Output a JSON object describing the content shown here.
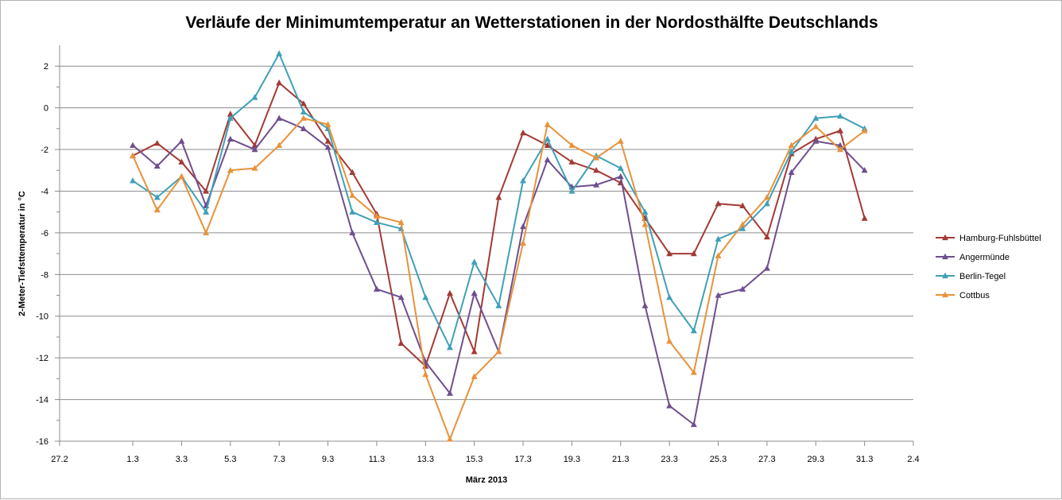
{
  "chart_data": {
    "type": "line",
    "title": "Verläufe der Minimumtemperatur an Wetterstationen in der Nordosthälfte Deutschlands",
    "xlabel": "März 2013",
    "ylabel": "2-Meter-Tiefsttemperatur in °C",
    "ylim": [
      -16,
      3
    ],
    "y_ticks": [
      2,
      0,
      -2,
      -4,
      -6,
      -8,
      -10,
      -12,
      -14,
      -16
    ],
    "x_ticks": [
      "27.2",
      "1.3",
      "3.3",
      "5.3",
      "7.3",
      "9.3",
      "11.3",
      "13.3",
      "15.3",
      "17.3",
      "19.3",
      "21.3",
      "23.3",
      "25.3",
      "27.3",
      "29.3",
      "31.3",
      "2.4"
    ],
    "x_tick_days": [
      -2,
      1,
      3,
      5,
      7,
      9,
      11,
      13,
      15,
      17,
      19,
      21,
      23,
      25,
      27,
      29,
      31,
      33
    ],
    "x_days": [
      1,
      2,
      3,
      4,
      5,
      6,
      7,
      8,
      9,
      10,
      11,
      12,
      13,
      14,
      15,
      16,
      17,
      18,
      19,
      20,
      21,
      22,
      23,
      24,
      25,
      26,
      27,
      28,
      29,
      30,
      31
    ],
    "grid": "horizontal",
    "legend_position": "right",
    "series": [
      {
        "name": "Hamburg-Fuhlsbüttel",
        "color": "#a33a35",
        "values": [
          -2.3,
          -1.7,
          -2.6,
          -4.0,
          -0.3,
          -1.8,
          1.2,
          0.2,
          -1.6,
          -3.1,
          -5.1,
          -11.3,
          -12.4,
          -8.9,
          -11.7,
          -4.3,
          -1.2,
          -1.8,
          -2.6,
          -3.0,
          -3.6,
          -5.3,
          -7.0,
          -7.0,
          -4.6,
          -4.7,
          -6.2,
          -2.2,
          -1.5,
          -1.1,
          -5.3
        ]
      },
      {
        "name": "Angermünde",
        "color": "#6f4e8f",
        "values": [
          -1.8,
          -2.8,
          -1.6,
          -4.7,
          -1.5,
          -2.0,
          -0.5,
          -1.0,
          -1.9,
          -6.0,
          -8.7,
          -9.1,
          -12.2,
          -13.7,
          -8.9,
          -11.7,
          -5.7,
          -2.5,
          -3.8,
          -3.7,
          -3.3,
          -9.5,
          -14.3,
          -15.2,
          -9.0,
          -8.7,
          -7.7,
          -3.1,
          -1.6,
          -1.8,
          -3.0
        ]
      },
      {
        "name": "Berlin-Tegel",
        "color": "#3fa0b8",
        "values": [
          -3.5,
          -4.3,
          -3.3,
          -5.0,
          -0.5,
          0.5,
          2.6,
          -0.2,
          -1.0,
          -5.0,
          -5.5,
          -5.8,
          -9.1,
          -11.5,
          -7.4,
          -9.5,
          -3.5,
          -1.5,
          -4.0,
          -2.3,
          -2.9,
          -5.0,
          -9.1,
          -10.7,
          -6.3,
          -5.8,
          -4.6,
          -2.1,
          -0.5,
          -0.4,
          -1.0
        ]
      },
      {
        "name": "Cottbus",
        "color": "#e8923a",
        "values": [
          -2.3,
          -4.9,
          -3.3,
          -6.0,
          -3.0,
          -2.9,
          -1.8,
          -0.5,
          -0.8,
          -4.2,
          -5.2,
          -5.5,
          -12.8,
          -15.9,
          -12.9,
          -11.7,
          -6.5,
          -0.8,
          -1.8,
          -2.4,
          -1.6,
          -5.6,
          -11.2,
          -12.7,
          -7.1,
          -5.6,
          -4.3,
          -1.8,
          -0.9,
          -2.0,
          -1.1
        ]
      }
    ]
  }
}
